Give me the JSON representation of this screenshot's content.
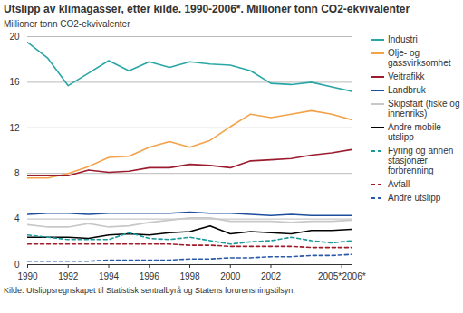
{
  "chart_data": {
    "type": "line",
    "title": "Utslipp av klimagasser, etter kilde. 1990-2006*. Millioner tonn CO2-ekvivalenter",
    "y_label": "Millioner tonn CO2-ekvivalenter",
    "caption": "Kilde: Utslippsregnskapet til Statistisk sentralbyrå og Statens forurensningstilsyn.",
    "x": [
      1990,
      1991,
      1992,
      1993,
      1994,
      1995,
      1996,
      1997,
      1998,
      1999,
      2000,
      2001,
      2002,
      2003,
      2004,
      2005,
      2006
    ],
    "xlim": [
      1990,
      2006
    ],
    "xticks": [
      1990,
      1992,
      1994,
      1996,
      1998,
      2000,
      2002,
      {
        "value": 2005,
        "label": "2005*"
      },
      {
        "value": 2006,
        "label": "2006*"
      }
    ],
    "ylim": [
      0,
      20
    ],
    "yticks": [
      0,
      4,
      8,
      12,
      16,
      20
    ],
    "grid": true,
    "legend": "right",
    "series": [
      {
        "name": "Industri",
        "color": "#2aa6a6",
        "line_style": "solid",
        "values": [
          19.5,
          18.1,
          15.7,
          16.8,
          17.9,
          17.0,
          17.8,
          17.3,
          17.8,
          17.6,
          17.5,
          17.0,
          15.9,
          15.8,
          16.0,
          15.6,
          15.2
        ]
      },
      {
        "name": "Olje- og gassvirksomhet",
        "color": "#f4a24a",
        "line_style": "solid",
        "values": [
          7.6,
          7.6,
          8.0,
          8.6,
          9.4,
          9.5,
          10.3,
          10.8,
          10.3,
          10.9,
          12.1,
          13.2,
          12.9,
          13.2,
          13.5,
          13.2,
          12.7
        ]
      },
      {
        "name": "Veitrafikk",
        "color": "#9b1c2e",
        "line_style": "solid",
        "values": [
          7.8,
          7.8,
          7.8,
          8.3,
          8.1,
          8.2,
          8.5,
          8.5,
          8.8,
          8.7,
          8.5,
          9.1,
          9.2,
          9.3,
          9.6,
          9.8,
          10.1
        ]
      },
      {
        "name": "Landbruk",
        "color": "#1f4e9c",
        "line_style": "solid",
        "values": [
          4.4,
          4.5,
          4.5,
          4.4,
          4.5,
          4.5,
          4.5,
          4.5,
          4.6,
          4.5,
          4.5,
          4.4,
          4.3,
          4.4,
          4.3,
          4.3,
          4.3
        ]
      },
      {
        "name": "Skipsfart (fiske og innenriks)",
        "color": "#c8c8c8",
        "line_style": "solid",
        "values": [
          3.5,
          3.3,
          3.3,
          3.6,
          3.3,
          3.4,
          3.7,
          3.9,
          4.1,
          4.1,
          3.8,
          3.8,
          3.8,
          3.7,
          3.8,
          3.8,
          3.9
        ]
      },
      {
        "name": "Andre mobile utslipp",
        "color": "#000000",
        "line_style": "solid",
        "values": [
          2.4,
          2.4,
          2.4,
          2.3,
          2.6,
          2.7,
          2.6,
          2.8,
          2.9,
          3.4,
          2.7,
          2.9,
          2.8,
          2.7,
          3.0,
          3.0,
          3.1
        ]
      },
      {
        "name": "Fyring og annen stasjonær forbrenning",
        "color": "#1a9a9a",
        "line_style": "dashed",
        "values": [
          2.6,
          2.4,
          2.2,
          2.2,
          2.2,
          2.8,
          2.3,
          2.2,
          2.4,
          2.1,
          1.8,
          2.0,
          2.1,
          2.4,
          2.1,
          1.9,
          2.1
        ]
      },
      {
        "name": "Avfall",
        "color": "#a01c2b",
        "line_style": "dashed",
        "values": [
          1.8,
          1.8,
          1.8,
          1.8,
          1.8,
          1.8,
          1.8,
          1.8,
          1.7,
          1.7,
          1.6,
          1.6,
          1.6,
          1.6,
          1.5,
          1.5,
          1.5
        ]
      },
      {
        "name": "Andre utslipp",
        "color": "#2b5aa8",
        "line_style": "dashed",
        "values": [
          0.3,
          0.3,
          0.3,
          0.3,
          0.4,
          0.4,
          0.4,
          0.4,
          0.5,
          0.5,
          0.6,
          0.6,
          0.7,
          0.7,
          0.8,
          0.8,
          0.9
        ]
      }
    ]
  }
}
